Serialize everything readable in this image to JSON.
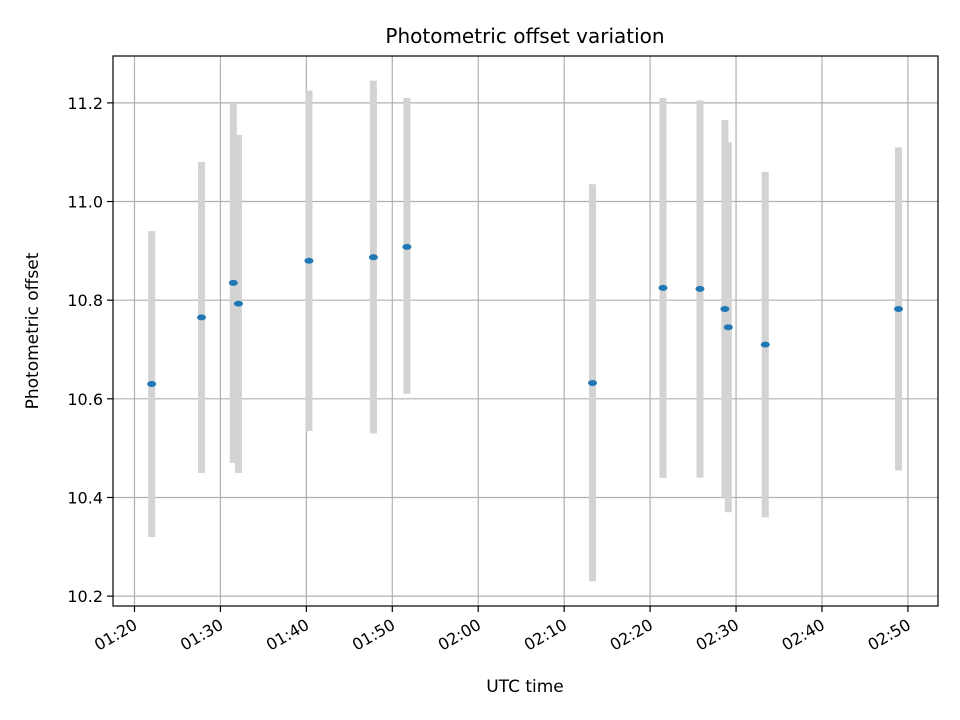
{
  "chart_data": {
    "type": "scatter",
    "title": "Photometric offset variation",
    "xlabel": "UTC time",
    "ylabel": "Photometric offset",
    "xlim": [
      "01:17.5",
      "02:53.5"
    ],
    "ylim": [
      10.18,
      11.295
    ],
    "x_ticks": [
      "01:20",
      "01:30",
      "01:40",
      "01:50",
      "02:00",
      "02:10",
      "02:20",
      "02:30",
      "02:40",
      "02:50"
    ],
    "y_ticks": [
      "10.2",
      "10.4",
      "10.6",
      "10.8",
      "11.0",
      "11.2"
    ],
    "grid": true,
    "point_color": "#1f77b4",
    "errorbar_color": "#d3d3d3",
    "points": [
      {
        "x": "01:22.0",
        "y": 10.63,
        "ylow": 10.32,
        "yhigh": 10.94
      },
      {
        "x": "01:27.8",
        "y": 10.765,
        "ylow": 10.45,
        "yhigh": 11.08
      },
      {
        "x": "01:31.5",
        "y": 10.835,
        "ylow": 10.47,
        "yhigh": 11.2
      },
      {
        "x": "01:32.1",
        "y": 10.793,
        "ylow": 10.45,
        "yhigh": 11.135
      },
      {
        "x": "01:40.3",
        "y": 10.88,
        "ylow": 10.535,
        "yhigh": 11.225
      },
      {
        "x": "01:47.8",
        "y": 10.887,
        "ylow": 10.53,
        "yhigh": 11.245
      },
      {
        "x": "01:51.7",
        "y": 10.908,
        "ylow": 10.61,
        "yhigh": 11.21
      },
      {
        "x": "02:13.3",
        "y": 10.632,
        "ylow": 10.23,
        "yhigh": 11.035
      },
      {
        "x": "02:21.5",
        "y": 10.825,
        "ylow": 10.44,
        "yhigh": 11.21
      },
      {
        "x": "02:25.8",
        "y": 10.823,
        "ylow": 10.44,
        "yhigh": 11.205
      },
      {
        "x": "02:28.7",
        "y": 10.782,
        "ylow": 10.4,
        "yhigh": 11.165
      },
      {
        "x": "02:29.1",
        "y": 10.745,
        "ylow": 10.37,
        "yhigh": 11.12
      },
      {
        "x": "02:33.4",
        "y": 10.71,
        "ylow": 10.36,
        "yhigh": 11.06
      },
      {
        "x": "02:48.9",
        "y": 10.782,
        "ylow": 10.455,
        "yhigh": 11.11
      }
    ]
  }
}
